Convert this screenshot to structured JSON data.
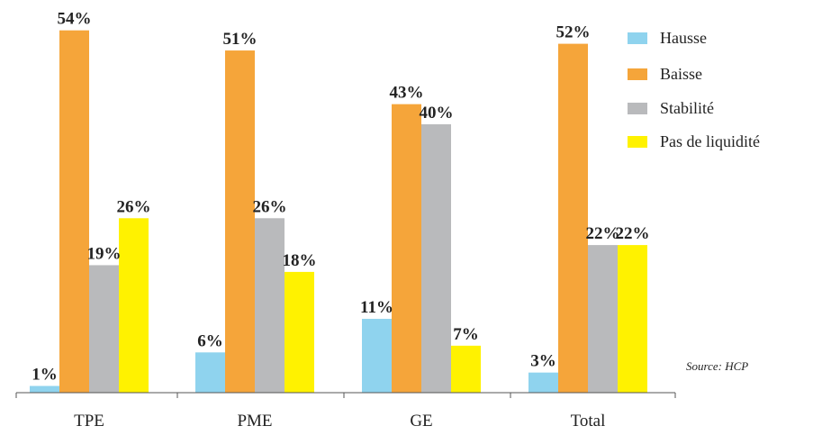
{
  "chart_data": {
    "type": "bar",
    "categories": [
      "TPE",
      "PME",
      "GE",
      "Total"
    ],
    "series": [
      {
        "name": "Hausse",
        "values": [
          1,
          6,
          11,
          3
        ],
        "color": "#8fd3ee"
      },
      {
        "name": "Baisse",
        "values": [
          54,
          51,
          43,
          52
        ],
        "color": "#f5a53a"
      },
      {
        "name": "Stabilité",
        "values": [
          19,
          26,
          40,
          22
        ],
        "color": "#b9babc"
      },
      {
        "name": "Pas de liquidité",
        "values": [
          26,
          18,
          7,
          22
        ],
        "color": "#fff200"
      }
    ],
    "value_labels": [
      [
        "1%",
        "54%",
        "19%",
        "26%"
      ],
      [
        "6%",
        "51%",
        "26%",
        "18%"
      ],
      [
        "11%",
        "43%",
        "40%",
        "7%"
      ],
      [
        "3%",
        "52%",
        "22%",
        "22%"
      ]
    ],
    "ylim": [
      0,
      55
    ],
    "legend_position": "top-right",
    "grid": false,
    "source": "Source: HCP"
  }
}
